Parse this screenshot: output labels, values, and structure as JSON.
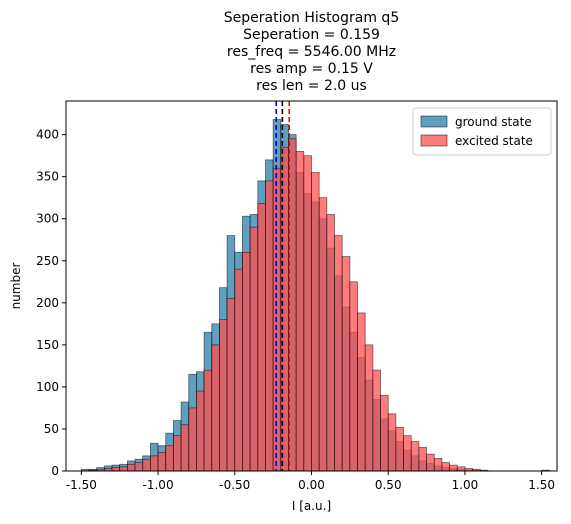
{
  "chart_data": {
    "type": "bar",
    "title_lines": [
      "Seperation Histogram q5",
      "Seperation = 0.159",
      "res_freq = 5546.00 MHz",
      "res amp = 0.15 V",
      "res len = 2.0 us"
    ],
    "xlabel": "I [a.u.]",
    "ylabel": "number",
    "xlim": [
      -1.6,
      1.6
    ],
    "ylim": [
      0,
      440
    ],
    "x_ticks": [
      -1.5,
      -1.0,
      -0.5,
      0.0,
      0.5,
      1.0,
      1.5
    ],
    "x_tick_labels": [
      "-1.50",
      "-1.00",
      "-0.50",
      "0.00",
      "0.50",
      "1.00",
      "1.50"
    ],
    "y_ticks": [
      0,
      50,
      100,
      150,
      200,
      250,
      300,
      350,
      400
    ],
    "y_tick_labels": [
      "0",
      "50",
      "100",
      "150",
      "200",
      "250",
      "300",
      "350",
      "400"
    ],
    "grid": false,
    "legend_placement": "top-right",
    "series": [
      {
        "name": "ground state",
        "color": "#2b7fa8",
        "bins": [
          {
            "x0": -1.5,
            "x1": -1.45,
            "count": 2
          },
          {
            "x0": -1.45,
            "x1": -1.4,
            "count": 2
          },
          {
            "x0": -1.4,
            "x1": -1.35,
            "count": 4
          },
          {
            "x0": -1.35,
            "x1": -1.3,
            "count": 6
          },
          {
            "x0": -1.3,
            "x1": -1.25,
            "count": 7
          },
          {
            "x0": -1.25,
            "x1": -1.2,
            "count": 8
          },
          {
            "x0": -1.2,
            "x1": -1.15,
            "count": 12
          },
          {
            "x0": -1.15,
            "x1": -1.1,
            "count": 14
          },
          {
            "x0": -1.1,
            "x1": -1.05,
            "count": 18
          },
          {
            "x0": -1.05,
            "x1": -1.0,
            "count": 33
          },
          {
            "x0": -1.0,
            "x1": -0.95,
            "count": 30
          },
          {
            "x0": -0.95,
            "x1": -0.9,
            "count": 45
          },
          {
            "x0": -0.9,
            "x1": -0.85,
            "count": 60
          },
          {
            "x0": -0.85,
            "x1": -0.8,
            "count": 82
          },
          {
            "x0": -0.8,
            "x1": -0.75,
            "count": 115
          },
          {
            "x0": -0.75,
            "x1": -0.7,
            "count": 118
          },
          {
            "x0": -0.7,
            "x1": -0.65,
            "count": 165
          },
          {
            "x0": -0.65,
            "x1": -0.6,
            "count": 175
          },
          {
            "x0": -0.6,
            "x1": -0.55,
            "count": 218
          },
          {
            "x0": -0.55,
            "x1": -0.5,
            "count": 280
          },
          {
            "x0": -0.5,
            "x1": -0.45,
            "count": 260
          },
          {
            "x0": -0.45,
            "x1": -0.4,
            "count": 303
          },
          {
            "x0": -0.4,
            "x1": -0.35,
            "count": 305
          },
          {
            "x0": -0.35,
            "x1": -0.3,
            "count": 345
          },
          {
            "x0": -0.3,
            "x1": -0.25,
            "count": 370
          },
          {
            "x0": -0.25,
            "x1": -0.2,
            "count": 418
          },
          {
            "x0": -0.2,
            "x1": -0.15,
            "count": 412
          },
          {
            "x0": -0.15,
            "x1": -0.1,
            "count": 400
          },
          {
            "x0": -0.1,
            "x1": -0.05,
            "count": 355
          },
          {
            "x0": -0.05,
            "x1": 0.0,
            "count": 330
          },
          {
            "x0": 0.0,
            "x1": 0.05,
            "count": 320
          },
          {
            "x0": 0.05,
            "x1": 0.1,
            "count": 300
          },
          {
            "x0": 0.1,
            "x1": 0.15,
            "count": 265
          },
          {
            "x0": 0.15,
            "x1": 0.2,
            "count": 232
          },
          {
            "x0": 0.2,
            "x1": 0.25,
            "count": 195
          },
          {
            "x0": 0.25,
            "x1": 0.3,
            "count": 165
          },
          {
            "x0": 0.3,
            "x1": 0.35,
            "count": 135
          },
          {
            "x0": 0.35,
            "x1": 0.4,
            "count": 108
          },
          {
            "x0": 0.4,
            "x1": 0.45,
            "count": 85
          },
          {
            "x0": 0.45,
            "x1": 0.5,
            "count": 62
          },
          {
            "x0": 0.5,
            "x1": 0.55,
            "count": 48
          },
          {
            "x0": 0.55,
            "x1": 0.6,
            "count": 35
          },
          {
            "x0": 0.6,
            "x1": 0.65,
            "count": 25
          },
          {
            "x0": 0.65,
            "x1": 0.7,
            "count": 18
          },
          {
            "x0": 0.7,
            "x1": 0.75,
            "count": 12
          },
          {
            "x0": 0.75,
            "x1": 0.8,
            "count": 9
          },
          {
            "x0": 0.8,
            "x1": 0.85,
            "count": 6
          },
          {
            "x0": 0.85,
            "x1": 0.9,
            "count": 4
          },
          {
            "x0": 0.9,
            "x1": 0.95,
            "count": 3
          },
          {
            "x0": 0.95,
            "x1": 1.0,
            "count": 2
          },
          {
            "x0": 1.0,
            "x1": 1.05,
            "count": 1
          },
          {
            "x0": 1.05,
            "x1": 1.1,
            "count": 1
          },
          {
            "x0": 1.5,
            "x1": 1.55,
            "count": 1
          }
        ]
      },
      {
        "name": "excited state",
        "color": "#ff5050",
        "bins": [
          {
            "x0": -1.45,
            "x1": -1.4,
            "count": 1
          },
          {
            "x0": -1.4,
            "x1": -1.35,
            "count": 2
          },
          {
            "x0": -1.35,
            "x1": -1.3,
            "count": 3
          },
          {
            "x0": -1.3,
            "x1": -1.25,
            "count": 4
          },
          {
            "x0": -1.25,
            "x1": -1.2,
            "count": 5
          },
          {
            "x0": -1.2,
            "x1": -1.15,
            "count": 8
          },
          {
            "x0": -1.15,
            "x1": -1.1,
            "count": 10
          },
          {
            "x0": -1.1,
            "x1": -1.05,
            "count": 14
          },
          {
            "x0": -1.05,
            "x1": -1.0,
            "count": 18
          },
          {
            "x0": -1.0,
            "x1": -0.95,
            "count": 22
          },
          {
            "x0": -0.95,
            "x1": -0.9,
            "count": 30
          },
          {
            "x0": -0.9,
            "x1": -0.85,
            "count": 42
          },
          {
            "x0": -0.85,
            "x1": -0.8,
            "count": 55
          },
          {
            "x0": -0.8,
            "x1": -0.75,
            "count": 75
          },
          {
            "x0": -0.75,
            "x1": -0.7,
            "count": 95
          },
          {
            "x0": -0.7,
            "x1": -0.65,
            "count": 120
          },
          {
            "x0": -0.65,
            "x1": -0.6,
            "count": 150
          },
          {
            "x0": -0.6,
            "x1": -0.55,
            "count": 180
          },
          {
            "x0": -0.55,
            "x1": -0.5,
            "count": 205
          },
          {
            "x0": -0.5,
            "x1": -0.45,
            "count": 240
          },
          {
            "x0": -0.45,
            "x1": -0.4,
            "count": 260
          },
          {
            "x0": -0.4,
            "x1": -0.35,
            "count": 290
          },
          {
            "x0": -0.35,
            "x1": -0.3,
            "count": 318
          },
          {
            "x0": -0.3,
            "x1": -0.25,
            "count": 345
          },
          {
            "x0": -0.25,
            "x1": -0.2,
            "count": 360
          },
          {
            "x0": -0.2,
            "x1": -0.15,
            "count": 385
          },
          {
            "x0": -0.15,
            "x1": -0.1,
            "count": 395
          },
          {
            "x0": -0.1,
            "x1": -0.05,
            "count": 380
          },
          {
            "x0": -0.05,
            "x1": 0.0,
            "count": 375
          },
          {
            "x0": 0.0,
            "x1": 0.05,
            "count": 355
          },
          {
            "x0": 0.05,
            "x1": 0.1,
            "count": 325
          },
          {
            "x0": 0.1,
            "x1": 0.15,
            "count": 305
          },
          {
            "x0": 0.15,
            "x1": 0.2,
            "count": 280
          },
          {
            "x0": 0.2,
            "x1": 0.25,
            "count": 255
          },
          {
            "x0": 0.25,
            "x1": 0.3,
            "count": 225
          },
          {
            "x0": 0.3,
            "x1": 0.35,
            "count": 188
          },
          {
            "x0": 0.35,
            "x1": 0.4,
            "count": 150
          },
          {
            "x0": 0.4,
            "x1": 0.45,
            "count": 120
          },
          {
            "x0": 0.45,
            "x1": 0.5,
            "count": 90
          },
          {
            "x0": 0.5,
            "x1": 0.55,
            "count": 68
          },
          {
            "x0": 0.55,
            "x1": 0.6,
            "count": 52
          },
          {
            "x0": 0.6,
            "x1": 0.65,
            "count": 42
          },
          {
            "x0": 0.65,
            "x1": 0.7,
            "count": 35
          },
          {
            "x0": 0.7,
            "x1": 0.75,
            "count": 28
          },
          {
            "x0": 0.75,
            "x1": 0.8,
            "count": 20
          },
          {
            "x0": 0.8,
            "x1": 0.85,
            "count": 15
          },
          {
            "x0": 0.85,
            "x1": 0.9,
            "count": 10
          },
          {
            "x0": 0.9,
            "x1": 0.95,
            "count": 7
          },
          {
            "x0": 0.95,
            "x1": 1.0,
            "count": 5
          },
          {
            "x0": 1.0,
            "x1": 1.05,
            "count": 3
          },
          {
            "x0": 1.05,
            "x1": 1.1,
            "count": 2
          },
          {
            "x0": 1.1,
            "x1": 1.15,
            "count": 1
          }
        ]
      }
    ],
    "vertical_lines": [
      {
        "x": -0.23,
        "color": "#0000ff",
        "style": "dashed"
      },
      {
        "x": -0.19,
        "color": "#000000",
        "style": "dashed"
      },
      {
        "x": -0.145,
        "color": "#ff0000",
        "style": "dashed"
      }
    ]
  }
}
